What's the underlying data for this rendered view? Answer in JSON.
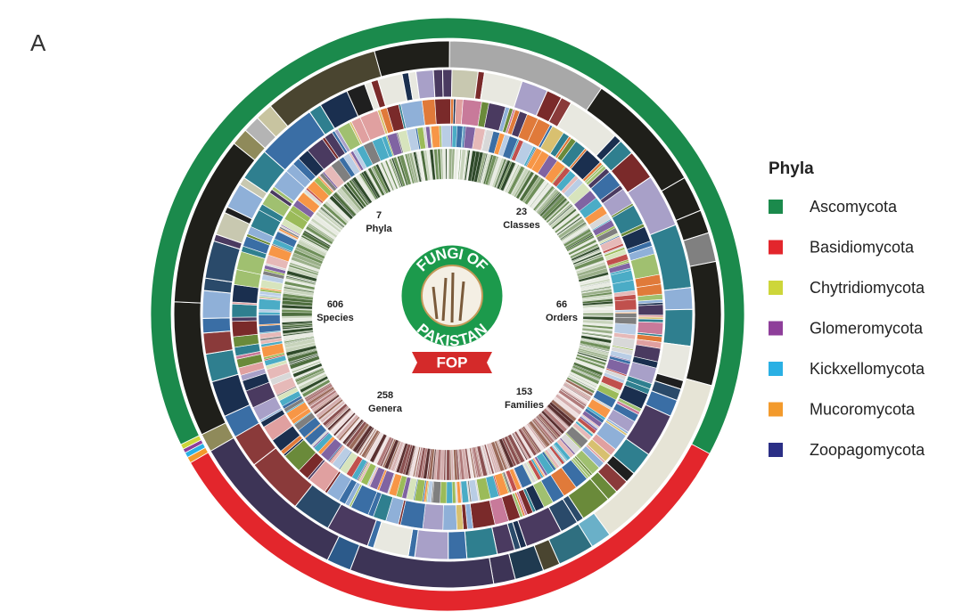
{
  "panel_label": "A",
  "legend": {
    "title": "Phyla",
    "items": [
      {
        "label": "Ascomycota",
        "color": "#1b8a4c"
      },
      {
        "label": "Basidiomycota",
        "color": "#e3262c"
      },
      {
        "label": "Chytridiomycota",
        "color": "#cdd63a"
      },
      {
        "label": "Glomeromycota",
        "color": "#8e3e9a"
      },
      {
        "label": "Kickxellomycota",
        "color": "#2ab0e4"
      },
      {
        "label": "Mucoromycota",
        "color": "#f39a2c"
      },
      {
        "label": "Zoopagomycota",
        "color": "#2b2f86"
      }
    ]
  },
  "ring_labels": [
    {
      "count": 7,
      "name": "Phyla"
    },
    {
      "count": 23,
      "name": "Classes"
    },
    {
      "count": 66,
      "name": "Orders"
    },
    {
      "count": 153,
      "name": "Families"
    },
    {
      "count": 258,
      "name": "Genera"
    },
    {
      "count": 606,
      "name": "Species"
    }
  ],
  "logo": {
    "top": "FUNGI OF",
    "bottom": "PAKISTAN",
    "banner": "FOP"
  }
}
